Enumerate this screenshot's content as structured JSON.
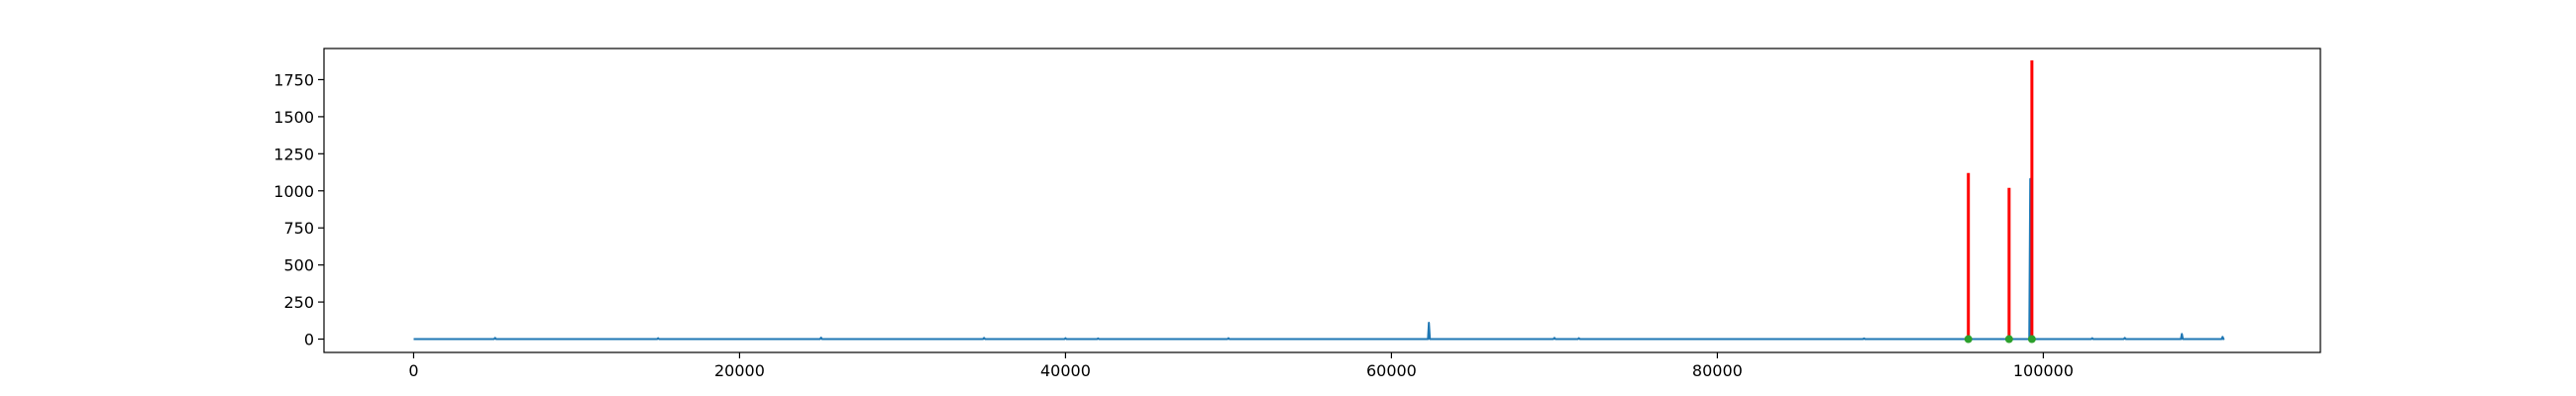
{
  "chart_data": {
    "type": "line",
    "title": "",
    "xlabel": "",
    "ylabel": "",
    "xlim": [
      -5500,
      117000
    ],
    "ylim": [
      -90,
      1960
    ],
    "grid": false,
    "legend": "none",
    "x_ticks": [
      0,
      20000,
      40000,
      60000,
      80000,
      100000
    ],
    "x_tick_labels": [
      "0",
      "20000",
      "40000",
      "60000",
      "80000",
      "100000"
    ],
    "y_ticks": [
      0,
      250,
      500,
      750,
      1000,
      1250,
      1500,
      1750
    ],
    "y_tick_labels": [
      "0",
      "250",
      "500",
      "750",
      "1000",
      "1250",
      "1500",
      "1750"
    ],
    "series": [
      {
        "color": "#1f77b4",
        "style": "line",
        "x_range": [
          0,
          111000
        ],
        "baseline": 0,
        "spikes": [
          {
            "x": 5000,
            "y": 8
          },
          {
            "x": 15000,
            "y": 6
          },
          {
            "x": 25000,
            "y": 10
          },
          {
            "x": 35000,
            "y": 8
          },
          {
            "x": 40000,
            "y": 6
          },
          {
            "x": 42000,
            "y": 5
          },
          {
            "x": 50000,
            "y": 6
          },
          {
            "x": 62300,
            "y": 110
          },
          {
            "x": 70000,
            "y": 8
          },
          {
            "x": 71500,
            "y": 6
          },
          {
            "x": 89000,
            "y": 5
          },
          {
            "x": 95400,
            "y": 10
          },
          {
            "x": 98000,
            "y": 8
          },
          {
            "x": 99200,
            "y": 1080
          },
          {
            "x": 103000,
            "y": 6
          },
          {
            "x": 105000,
            "y": 8
          },
          {
            "x": 108500,
            "y": 35
          },
          {
            "x": 111000,
            "y": 15
          }
        ]
      },
      {
        "color": "#ff0000",
        "style": "vertical-lines",
        "points": [
          {
            "x": 95400,
            "y": 1120
          },
          {
            "x": 97900,
            "y": 1020
          },
          {
            "x": 99300,
            "y": 1880
          }
        ]
      },
      {
        "color": "#2ca02c",
        "style": "markers",
        "points": [
          {
            "x": 95400,
            "y": 0
          },
          {
            "x": 97900,
            "y": 0
          },
          {
            "x": 99300,
            "y": 0
          }
        ]
      }
    ]
  }
}
